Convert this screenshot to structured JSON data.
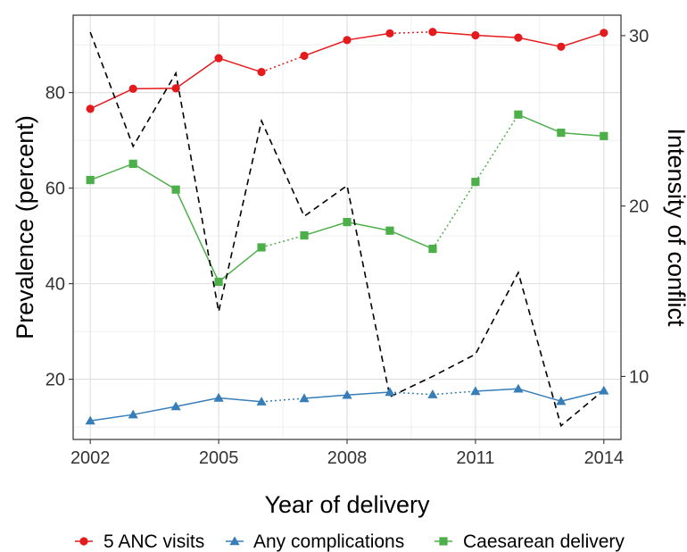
{
  "chart_data": {
    "type": "line",
    "xlabel": "Year of delivery",
    "ylabel": "Prevalence (percent)",
    "y2label": "Intensity of conflict",
    "x": [
      2002,
      2003,
      2004,
      2005,
      2006,
      2007,
      2008,
      2009,
      2010,
      2011,
      2012,
      2013,
      2014
    ],
    "xlim": [
      2001.6,
      2014.4
    ],
    "xticks": [
      2002,
      2005,
      2008,
      2011,
      2014
    ],
    "ylim": [
      7.4,
      96.2
    ],
    "yticks": [
      20,
      40,
      60,
      80
    ],
    "y2lim": [
      6.3,
      31.2
    ],
    "y2ticks": [
      10,
      20,
      30
    ],
    "grid": true,
    "legend_position": "bottom",
    "series": [
      {
        "name": "5 ANC visits",
        "axis": "left",
        "color": "#E41A1C",
        "marker": "circle",
        "values": [
          76.6,
          80.8,
          80.9,
          87.2,
          84.3,
          87.7,
          91.0,
          92.4,
          92.7,
          92.0,
          91.5,
          89.6,
          92.5
        ],
        "dotted_segments": [
          [
            2006,
            2007
          ],
          [
            2009,
            2010
          ]
        ]
      },
      {
        "name": "Any complications",
        "axis": "left",
        "color": "#377EB8",
        "marker": "triangle",
        "values": [
          11.3,
          12.6,
          14.3,
          16.1,
          15.3,
          16.0,
          16.7,
          17.3,
          16.8,
          17.5,
          18.0,
          15.4,
          17.6
        ],
        "dotted_segments": [
          [
            2006,
            2007
          ],
          [
            2009,
            2010
          ],
          [
            2010,
            2011
          ]
        ]
      },
      {
        "name": "Caesarean delivery",
        "axis": "left",
        "color": "#4DAF4A",
        "marker": "square",
        "values": [
          61.7,
          65.1,
          59.7,
          40.4,
          47.6,
          50.1,
          52.9,
          51.1,
          47.3,
          61.3,
          75.4,
          71.6,
          70.9
        ],
        "dotted_segments": [
          [
            2006,
            2007
          ],
          [
            2010,
            2011
          ],
          [
            2011,
            2012
          ]
        ]
      },
      {
        "name": "",
        "axis": "right",
        "color": "#000000",
        "style": "dashed",
        "values": [
          30.2,
          23.5,
          27.8,
          13.8,
          25.0,
          19.4,
          21.2,
          8.8,
          10.0,
          11.3,
          16.1,
          7.1,
          9.2
        ]
      }
    ]
  }
}
